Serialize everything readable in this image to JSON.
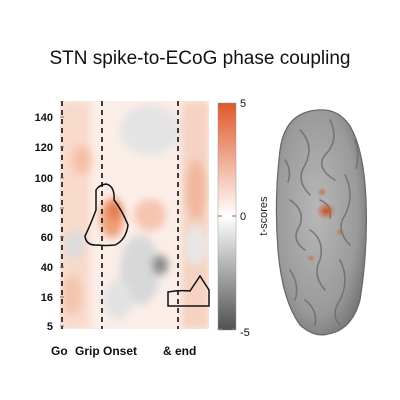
{
  "chart_data": {
    "type": "heatmap",
    "title": "STN spike-to-ECoG phase coupling",
    "y_ticks": [
      "140",
      "120",
      "100",
      "80",
      "60",
      "40",
      "16",
      "5"
    ],
    "y_tick_values": [
      140,
      120,
      100,
      80,
      60,
      40,
      16,
      5
    ],
    "x_labels": [
      "Go",
      "Grip Onset",
      "& end"
    ],
    "events": [
      "Go",
      "Grip Onset",
      "& end"
    ],
    "colorbar": {
      "label": "t-scores",
      "ticks": [
        "5",
        "0",
        "-5"
      ],
      "range": [
        -5,
        5
      ],
      "colors": {
        "high": "#e0582a",
        "mid": "#ffffff",
        "low": "#505050"
      }
    },
    "significant_clusters": [
      {
        "event": "Grip Onset",
        "freq_range": [
          55,
          95
        ]
      },
      {
        "event": "& end",
        "freq_range": [
          10,
          35
        ]
      }
    ]
  }
}
